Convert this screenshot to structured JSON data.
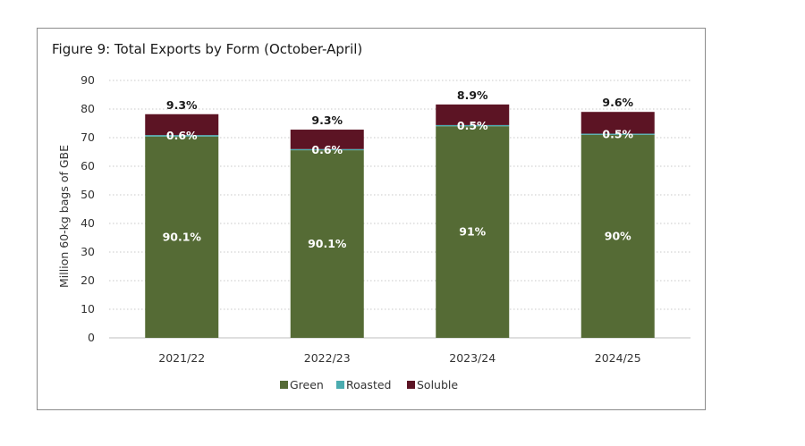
{
  "chart_data": {
    "type": "bar",
    "stacked": true,
    "title": "Figure 9: Total Exports by Form (October-April)",
    "xlabel": "",
    "ylabel": "Million 60-kg bags of GBE",
    "ylim": [
      0,
      90
    ],
    "yticks": [
      0,
      10,
      20,
      30,
      40,
      50,
      60,
      70,
      80,
      90
    ],
    "ytick_labels": [
      "0",
      "10",
      "20",
      "30",
      "40",
      "50",
      "60",
      "70",
      "80",
      "90"
    ],
    "grid": "horizontal dotted",
    "legend_position": "bottom",
    "categories": [
      "2021/22",
      "2022/23",
      "2023/24",
      "2024/25"
    ],
    "series": [
      {
        "name": "Green",
        "color": "#556b35",
        "values": [
          70.4,
          65.6,
          74.0,
          71.0
        ],
        "labels": [
          "90.1%",
          "90.1%",
          "91%",
          "90%"
        ]
      },
      {
        "name": "Roasted",
        "color": "#4bacb0",
        "values": [
          0.5,
          0.4,
          0.4,
          0.4
        ],
        "labels": [
          "0.6%",
          "0.6%",
          "0.5%",
          "0.5%"
        ]
      },
      {
        "name": "Soluble",
        "color": "#5c1424",
        "values": [
          7.3,
          6.8,
          7.2,
          7.6
        ],
        "labels": [
          "9.3%",
          "9.3%",
          "8.9%",
          "9.6%"
        ]
      }
    ]
  }
}
